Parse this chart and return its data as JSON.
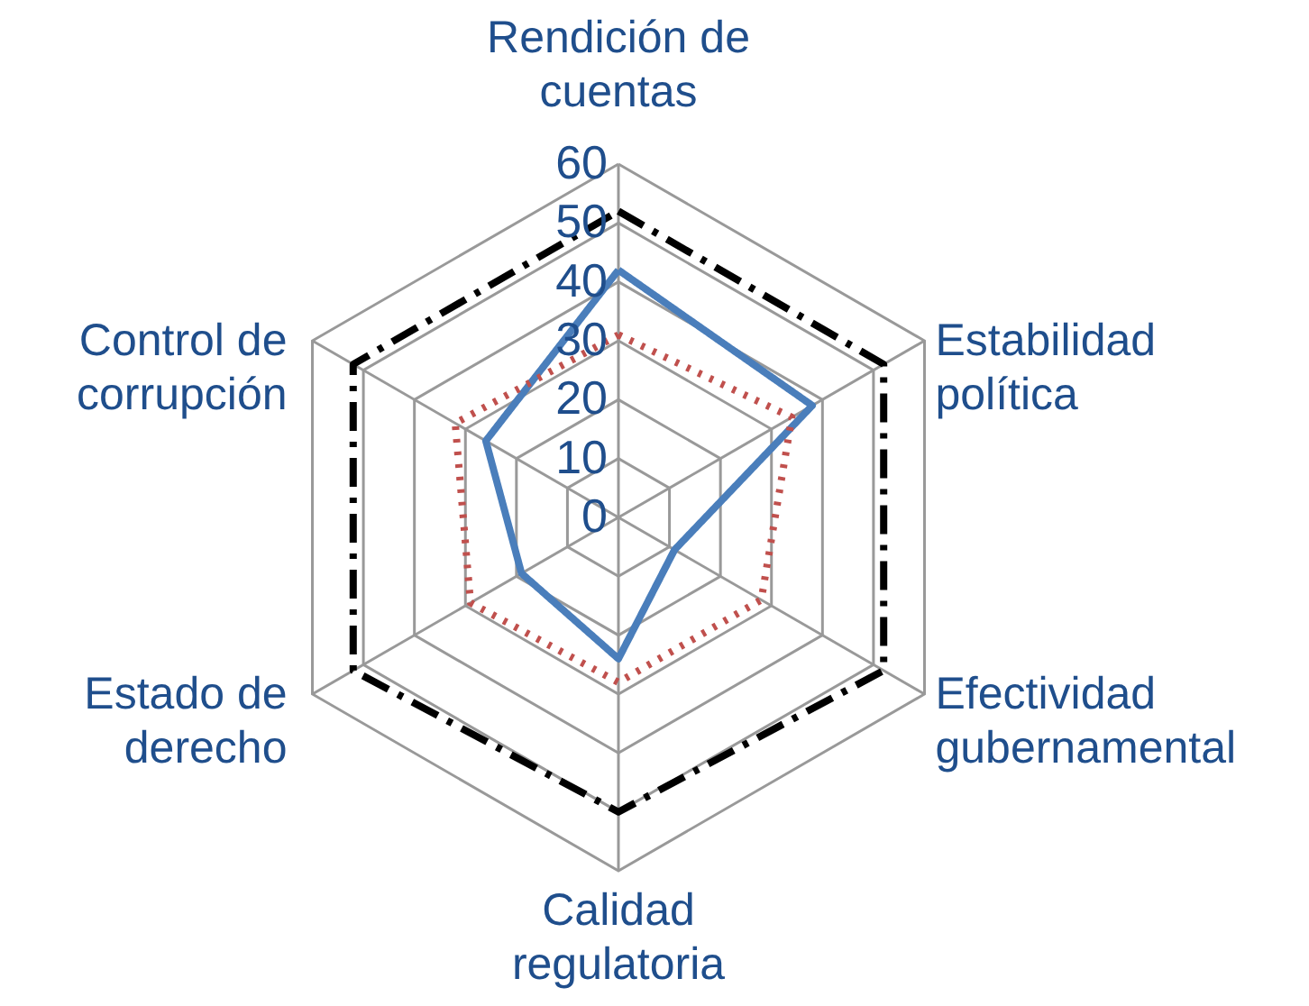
{
  "chart_data": {
    "type": "radar",
    "categories": [
      "Rendición de cuentas",
      "Estabilidad política",
      "Efectividad gubernamental",
      "Calidad regulatoria",
      "Estado de derecho",
      "Control de corrupción"
    ],
    "ylim": [
      0,
      60
    ],
    "yticks": [
      0,
      10,
      20,
      30,
      40,
      50,
      60
    ],
    "grid": true,
    "series": [
      {
        "color": "#4a7ebb",
        "line_style": "solid",
        "values": [
          42,
          38,
          11,
          24,
          19,
          26
        ]
      },
      {
        "color": "#c0504d",
        "line_style": "dotted",
        "values": [
          31,
          34,
          28,
          28,
          29,
          32
        ]
      },
      {
        "color": "#000000",
        "line_style": "dashed",
        "values": [
          52,
          52,
          52,
          50,
          52,
          52
        ]
      }
    ]
  }
}
